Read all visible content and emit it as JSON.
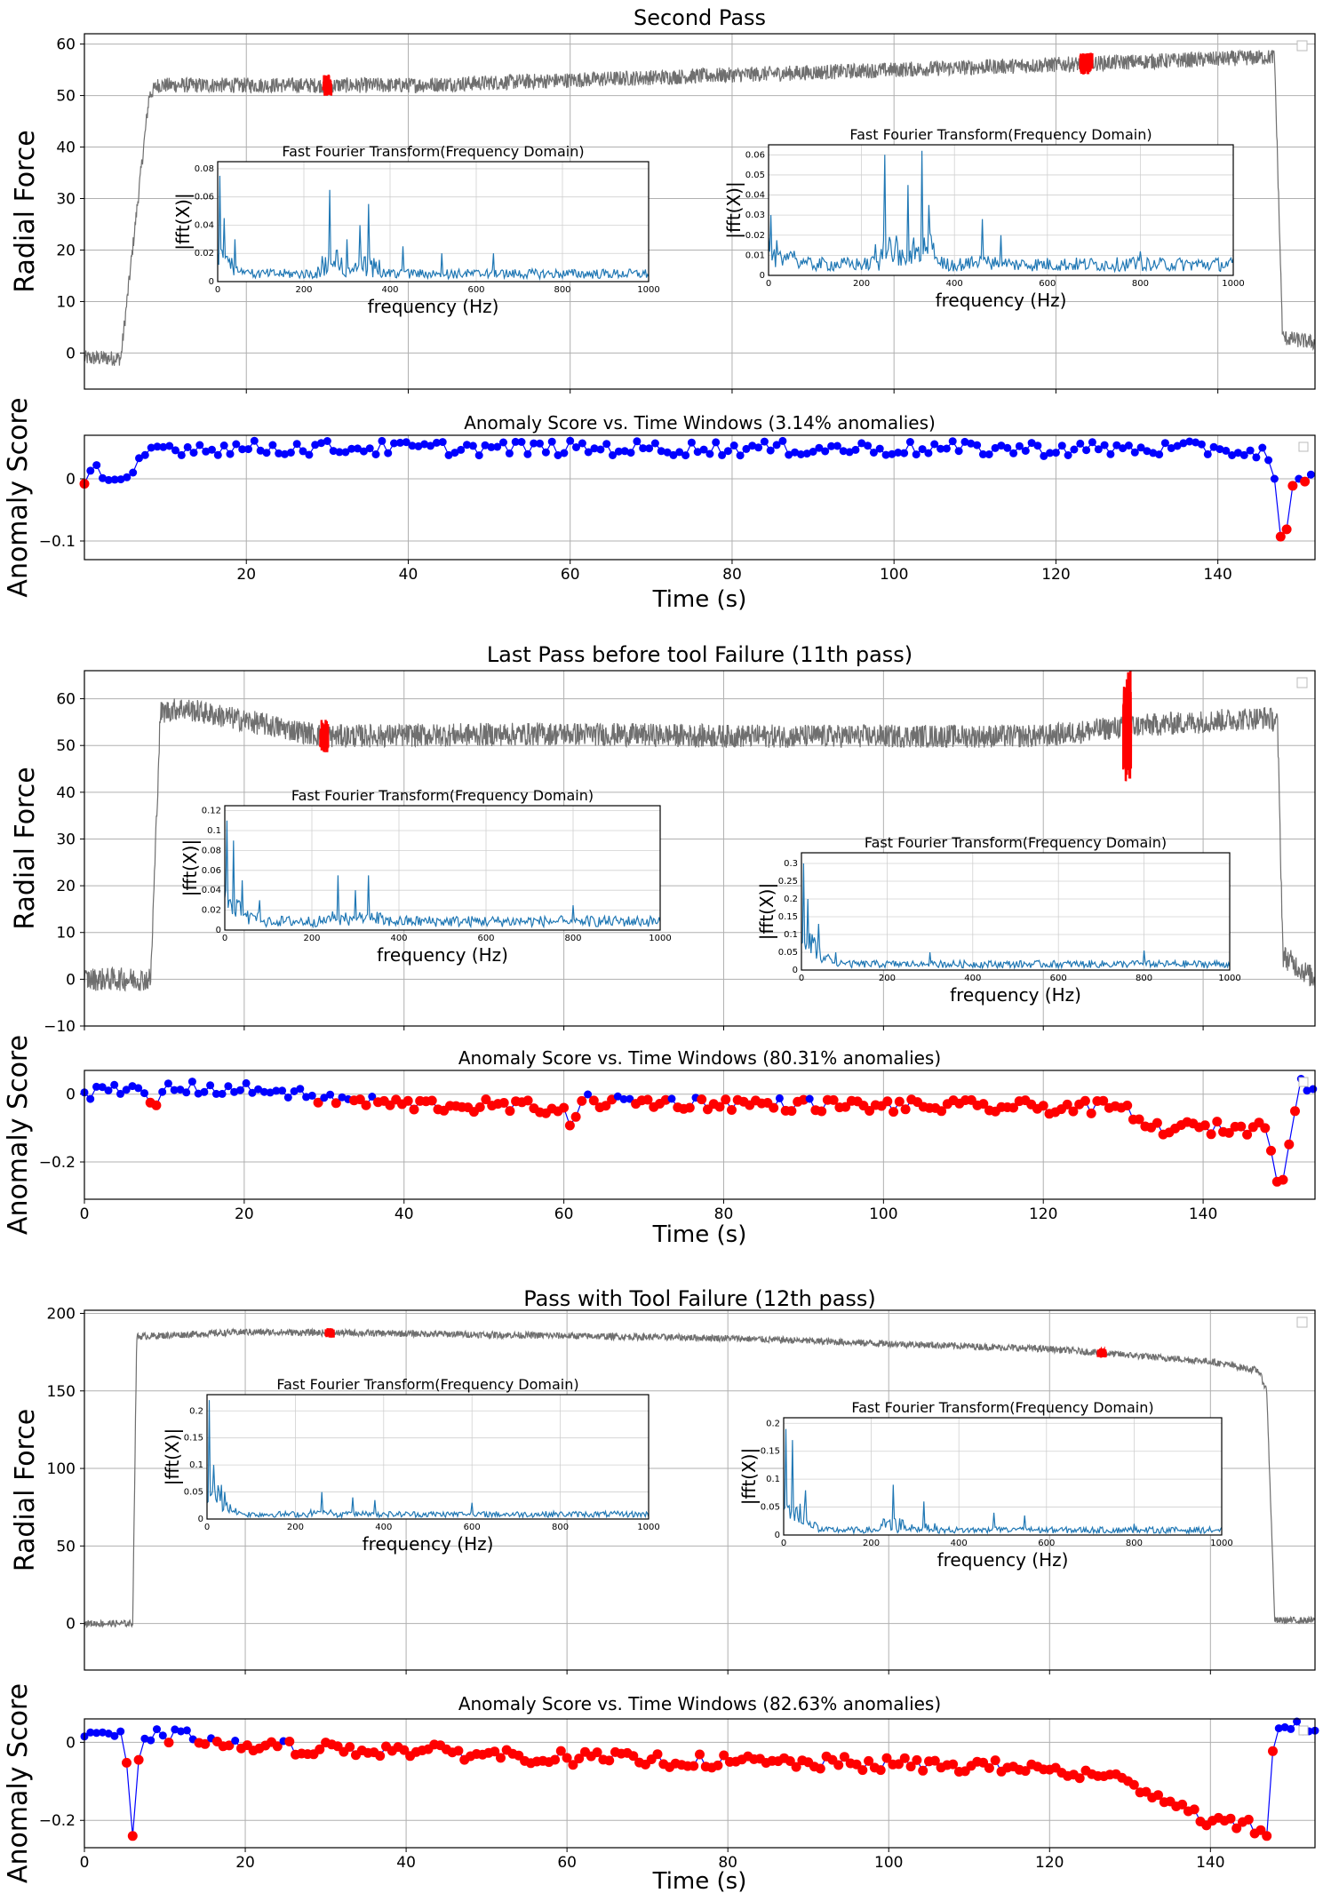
{
  "colors": {
    "force_line": "#6f6f6f",
    "fft_line": "#1f77b4",
    "normal_point": "#0000ff",
    "anomaly_point": "#ff0000",
    "score_line": "#0000ff"
  },
  "chart_data": [
    {
      "type": "line",
      "panel": "force",
      "title": "Second Pass",
      "ylabel": "Radial Force",
      "xlim": [
        0,
        152
      ],
      "ylim": [
        -7,
        62
      ],
      "yticks": [
        0,
        10,
        20,
        30,
        40,
        50,
        60
      ],
      "xticks": [
        20,
        40,
        60,
        80,
        100,
        120,
        140
      ],
      "grid": true,
      "profile": [
        [
          0,
          -1
        ],
        [
          4.5,
          -1
        ],
        [
          8,
          50
        ],
        [
          9,
          52
        ],
        [
          40,
          52
        ],
        [
          80,
          54
        ],
        [
          120,
          56
        ],
        [
          147,
          57.5
        ],
        [
          148,
          3
        ],
        [
          152,
          2
        ]
      ],
      "noise": 1.5,
      "anomaly_ranges": [
        [
          29.5,
          30.5
        ],
        [
          123,
          124.5
        ]
      ],
      "insets": [
        {
          "title": "Fast Fourier Transform(Frequency Domain)",
          "xlabel": "frequency (Hz)",
          "ylabel": "|fft(X)|",
          "xlim": [
            0,
            1000
          ],
          "ylim": [
            0,
            0.085
          ],
          "xticks": [
            0,
            200,
            400,
            600,
            800,
            1000
          ],
          "yticks": [
            0,
            0.02,
            0.04,
            0.06,
            0.08
          ],
          "peaks": [
            [
              5,
              0.075
            ],
            [
              15,
              0.045
            ],
            [
              40,
              0.03
            ],
            [
              260,
              0.065
            ],
            [
              300,
              0.03
            ],
            [
              330,
              0.04
            ],
            [
              350,
              0.055
            ],
            [
              430,
              0.025
            ],
            [
              520,
              0.02
            ],
            [
              640,
              0.02
            ]
          ],
          "base": 0.005
        },
        {
          "title": "Fast Fourier Transform(Frequency Domain)",
          "xlabel": "frequency (Hz)",
          "ylabel": "|fft(X)|",
          "xlim": [
            0,
            1000
          ],
          "ylim": [
            0,
            0.065
          ],
          "xticks": [
            0,
            200,
            400,
            600,
            800,
            1000
          ],
          "yticks": [
            0,
            0.01,
            0.02,
            0.03,
            0.04,
            0.05,
            0.06
          ],
          "peaks": [
            [
              5,
              0.03
            ],
            [
              250,
              0.06
            ],
            [
              300,
              0.045
            ],
            [
              330,
              0.062
            ],
            [
              345,
              0.035
            ],
            [
              460,
              0.028
            ],
            [
              500,
              0.02
            ],
            [
              800,
              0.012
            ]
          ],
          "base": 0.005
        }
      ]
    },
    {
      "type": "scatter",
      "panel": "score",
      "title": "Anomaly Score vs. Time Windows (3.14% anomalies)",
      "xlabel": "Time (s)",
      "ylabel": "Anomaly Score",
      "xlim": [
        0,
        152
      ],
      "ylim": [
        -0.13,
        0.07
      ],
      "yticks": [
        0.0,
        -0.1
      ],
      "xticks": [
        20,
        40,
        60,
        80,
        100,
        120,
        140
      ],
      "step": 0.75,
      "profile": [
        [
          0,
          -0.008
        ],
        [
          1,
          0.02
        ],
        [
          2,
          0.002
        ],
        [
          3,
          -0.002
        ],
        [
          4,
          -0.001
        ],
        [
          5,
          0.0
        ],
        [
          6,
          0.01
        ],
        [
          8,
          0.05
        ],
        [
          140,
          0.048
        ],
        [
          146,
          0.04
        ],
        [
          147,
          0.0
        ],
        [
          148,
          -0.124
        ],
        [
          149,
          -0.015
        ],
        [
          150,
          0.0
        ],
        [
          151,
          -0.006
        ],
        [
          152,
          0.012
        ]
      ],
      "noise": 0.012,
      "threshold": -0.003
    },
    {
      "type": "line",
      "panel": "force",
      "title": "Last Pass before tool Failure (11th pass)",
      "ylabel": "Radial Force",
      "xlim": [
        0,
        154
      ],
      "ylim": [
        -10,
        66
      ],
      "yticks": [
        -10,
        0,
        10,
        20,
        30,
        40,
        50,
        60
      ],
      "xticks": [
        0,
        20,
        40,
        60,
        80,
        100,
        120,
        140
      ],
      "grid": true,
      "profile": [
        [
          0,
          0
        ],
        [
          8.3,
          0
        ],
        [
          9.5,
          57
        ],
        [
          12,
          58
        ],
        [
          30,
          52
        ],
        [
          60,
          52.5
        ],
        [
          80,
          52
        ],
        [
          120,
          52
        ],
        [
          130,
          54
        ],
        [
          148,
          56
        ],
        [
          149.3,
          55
        ],
        [
          150,
          5
        ],
        [
          154,
          0
        ]
      ],
      "noise": 2.5,
      "anomaly_ranges": [
        [
          29.5,
          30.5
        ],
        [
          130,
          131
        ]
      ],
      "insets": [
        {
          "title": "Fast Fourier Transform(Frequency Domain)",
          "xlabel": "frequency (Hz)",
          "ylabel": "|fft(X)|",
          "xlim": [
            0,
            1000
          ],
          "ylim": [
            0,
            0.125
          ],
          "xticks": [
            0,
            200,
            400,
            600,
            800,
            1000
          ],
          "yticks": [
            0,
            0.02,
            0.04,
            0.06,
            0.08,
            0.1,
            0.12
          ],
          "peaks": [
            [
              5,
              0.11
            ],
            [
              20,
              0.09
            ],
            [
              40,
              0.05
            ],
            [
              80,
              0.03
            ],
            [
              260,
              0.055
            ],
            [
              300,
              0.04
            ],
            [
              330,
              0.055
            ],
            [
              800,
              0.025
            ]
          ],
          "base": 0.008
        },
        {
          "title": "Fast Fourier Transform(Frequency Domain)",
          "xlabel": "frequency (Hz)",
          "ylabel": "|fft(X)|",
          "xlim": [
            0,
            1000
          ],
          "ylim": [
            0,
            0.33
          ],
          "xticks": [
            0,
            200,
            400,
            600,
            800,
            1000
          ],
          "yticks": [
            0,
            0.05,
            0.1,
            0.15,
            0.2,
            0.25,
            0.3
          ],
          "peaks": [
            [
              5,
              0.3
            ],
            [
              15,
              0.2
            ],
            [
              40,
              0.13
            ],
            [
              80,
              0.05
            ],
            [
              300,
              0.05
            ],
            [
              800,
              0.055
            ]
          ],
          "base": 0.015
        }
      ]
    },
    {
      "type": "scatter",
      "panel": "score",
      "title": "Anomaly Score vs. Time Windows (80.31% anomalies)",
      "xlabel": "Time (s)",
      "ylabel": "Anomaly Score",
      "xlim": [
        0,
        154
      ],
      "ylim": [
        -0.31,
        0.07
      ],
      "yticks": [
        0.0,
        -0.2
      ],
      "xticks": [
        0,
        20,
        40,
        60,
        80,
        100,
        120,
        140
      ],
      "step": 0.75,
      "profile": [
        [
          0,
          0.005
        ],
        [
          8,
          0.01
        ],
        [
          8.5,
          -0.06
        ],
        [
          10,
          0.02
        ],
        [
          25,
          0.01
        ],
        [
          28,
          -0.01
        ],
        [
          40,
          -0.03
        ],
        [
          60,
          -0.04
        ],
        [
          61,
          -0.11
        ],
        [
          62,
          -0.02
        ],
        [
          100,
          -0.035
        ],
        [
          130,
          -0.04
        ],
        [
          133,
          -0.1
        ],
        [
          148,
          -0.1
        ],
        [
          149.5,
          -0.29
        ],
        [
          151,
          -0.12
        ],
        [
          152,
          0.05
        ],
        [
          154,
          0.01
        ]
      ],
      "noise": 0.02,
      "threshold": -0.015
    },
    {
      "type": "line",
      "panel": "force",
      "title": "Pass with Tool Failure (12th pass)",
      "ylabel": "Radial Force",
      "xlim": [
        0,
        153
      ],
      "ylim": [
        -30,
        202
      ],
      "yticks": [
        0,
        50,
        100,
        150,
        200
      ],
      "xticks": [
        20,
        40,
        60,
        80,
        100,
        120,
        140
      ],
      "grid": true,
      "profile": [
        [
          0,
          0
        ],
        [
          6,
          0
        ],
        [
          6.5,
          185
        ],
        [
          20,
          188
        ],
        [
          40,
          187
        ],
        [
          80,
          184
        ],
        [
          120,
          177
        ],
        [
          140,
          169
        ],
        [
          146,
          163
        ],
        [
          147,
          150
        ],
        [
          148,
          2
        ],
        [
          153,
          2
        ]
      ],
      "noise": 2.2,
      "anomaly_ranges": [
        [
          30,
          31
        ],
        [
          126,
          127
        ]
      ],
      "insets": [
        {
          "title": "Fast Fourier Transform(Frequency Domain)",
          "xlabel": "frequency (Hz)",
          "ylabel": "|fft(X)|",
          "xlim": [
            0,
            1000
          ],
          "ylim": [
            0,
            0.23
          ],
          "xticks": [
            0,
            200,
            400,
            600,
            800,
            1000
          ],
          "yticks": [
            0,
            0.05,
            0.1,
            0.15,
            0.2
          ],
          "peaks": [
            [
              5,
              0.22
            ],
            [
              15,
              0.1
            ],
            [
              40,
              0.05
            ],
            [
              260,
              0.05
            ],
            [
              330,
              0.04
            ],
            [
              380,
              0.035
            ],
            [
              600,
              0.03
            ]
          ],
          "base": 0.008
        },
        {
          "title": "Fast Fourier Transform(Frequency Domain)",
          "xlabel": "frequency (Hz)",
          "ylabel": "|fft(X)|",
          "xlim": [
            0,
            1000
          ],
          "ylim": [
            0,
            0.21
          ],
          "xticks": [
            0,
            200,
            400,
            600,
            800,
            1000
          ],
          "yticks": [
            0,
            0.05,
            0.1,
            0.15,
            0.2
          ],
          "peaks": [
            [
              5,
              0.19
            ],
            [
              20,
              0.17
            ],
            [
              50,
              0.08
            ],
            [
              250,
              0.09
            ],
            [
              320,
              0.06
            ],
            [
              480,
              0.04
            ],
            [
              550,
              0.035
            ],
            [
              800,
              0.02
            ]
          ],
          "base": 0.008
        }
      ]
    },
    {
      "type": "scatter",
      "panel": "score",
      "title": "Anomaly Score vs. Time Windows (82.63% anomalies)",
      "xlabel": "Time (s)",
      "ylabel": "Anomaly Score",
      "xlim": [
        0,
        153
      ],
      "ylim": [
        -0.27,
        0.06
      ],
      "yticks": [
        0.0,
        -0.2
      ],
      "xticks": [
        0,
        20,
        40,
        60,
        80,
        100,
        120,
        140
      ],
      "step": 0.75,
      "profile": [
        [
          0,
          0.015
        ],
        [
          5,
          0.01
        ],
        [
          6,
          -0.24
        ],
        [
          7,
          0.02
        ],
        [
          16,
          0.01
        ],
        [
          17,
          -0.01
        ],
        [
          40,
          -0.02
        ],
        [
          60,
          -0.04
        ],
        [
          80,
          -0.05
        ],
        [
          110,
          -0.06
        ],
        [
          120,
          -0.07
        ],
        [
          130,
          -0.1
        ],
        [
          140,
          -0.2
        ],
        [
          146,
          -0.22
        ],
        [
          147,
          -0.24
        ],
        [
          148,
          0.05
        ],
        [
          153,
          0.03
        ]
      ],
      "noise": 0.018,
      "threshold": 0.003
    }
  ]
}
